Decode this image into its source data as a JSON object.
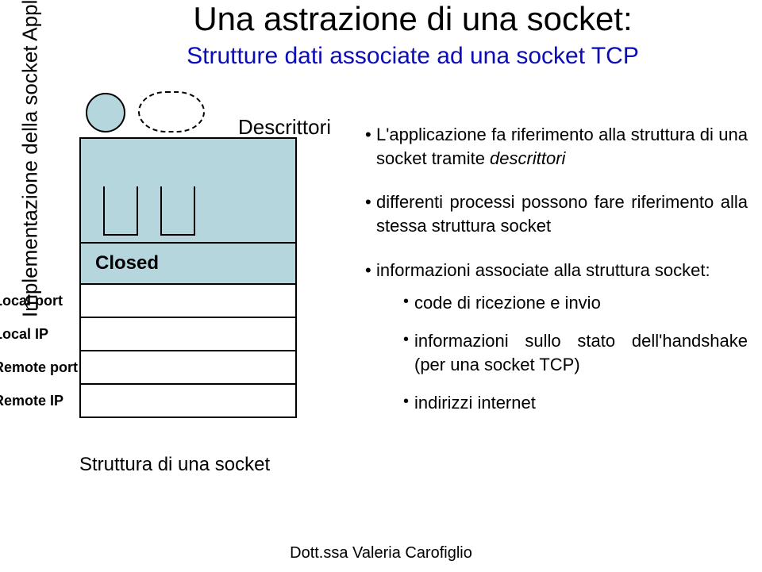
{
  "title": "Una astrazione di una socket:",
  "subtitle": "Strutture dati associate ad una socket TCP",
  "vertical_label": "Implementazione della socket  Applicazione",
  "descrittori_label": "Descrittori",
  "state_label": "Closed",
  "fields": {
    "local_port": "Local port",
    "local_ip": "Local IP",
    "remote_port": "Remote port",
    "remote_ip": "Remote IP"
  },
  "struct_caption": "Struttura di una socket",
  "footer": "Dott.ssa Valeria Carofiglio",
  "bullets": {
    "b1": {
      "pre": "L'applicazione fa riferimento alla struttura di una socket tramite ",
      "ital": "descrittori"
    },
    "b2": "differenti processi possono fare riferimento alla stessa struttura socket",
    "b3": "informazioni associate alla struttura socket:",
    "sub": {
      "s1": "code di ricezione e invio",
      "s2": "informazioni sullo stato dell'handshake (per una socket TCP)",
      "s3": "indirizzi internet"
    }
  },
  "colors": {
    "title_color": "#000000",
    "subtitle_color": "#0b0bb8",
    "fill_color": "#b4d6dc",
    "text_color": "#000000",
    "background": "#ffffff"
  }
}
